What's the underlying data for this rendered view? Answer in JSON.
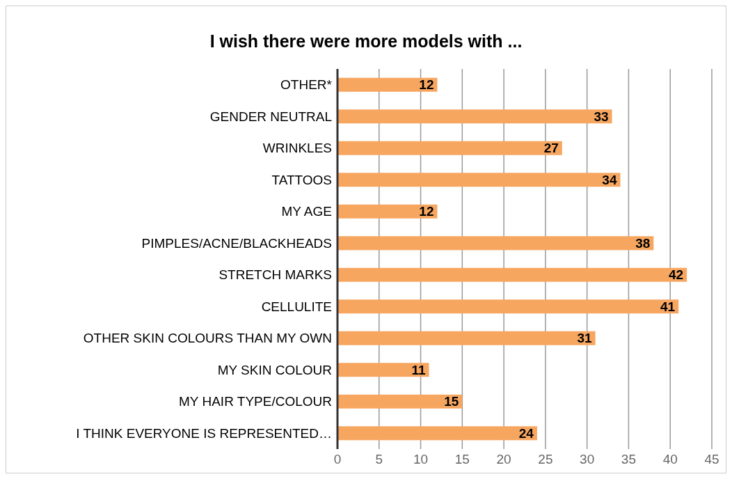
{
  "chart_data": {
    "type": "bar",
    "orientation": "horizontal",
    "title": "I wish there were more models with ...",
    "categories": [
      "OTHER*",
      "GENDER NEUTRAL",
      "WRINKLES",
      "TATTOOS",
      "MY AGE",
      "PIMPLES/ACNE/BLACKHEADS",
      "STRETCH MARKS",
      "CELLULITE",
      "OTHER SKIN COLOURS THAN MY OWN",
      "MY SKIN COLOUR",
      "MY HAIR TYPE/COLOUR",
      "I THINK EVERYONE IS REPRESENTED…"
    ],
    "values": [
      12,
      33,
      27,
      34,
      12,
      38,
      42,
      41,
      31,
      11,
      15,
      24
    ],
    "color": "#f7a660",
    "xlim": [
      0,
      45
    ],
    "xticks": [
      0,
      5,
      10,
      15,
      20,
      25,
      30,
      35,
      40,
      45
    ],
    "grid": "x",
    "data_labels": true
  }
}
